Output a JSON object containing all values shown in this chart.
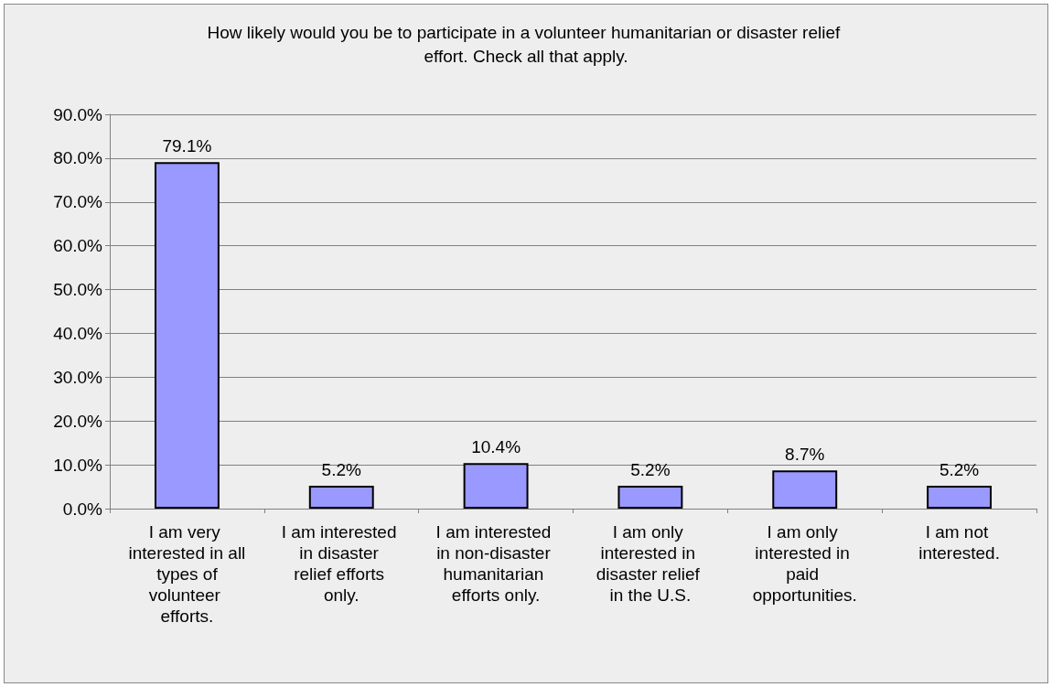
{
  "chart_data": {
    "type": "bar",
    "title": "How likely would you be to participate in a volunteer humanitarian or disaster relief effort. Check all that apply.",
    "categories": [
      "I am very interested in all types of volunteer efforts.",
      "I am interested in disaster relief efforts only.",
      "I am interested in non-disaster humanitarian efforts only.",
      "I am only interested in disaster relief in the U.S.",
      "I am only interested in paid opportunities.",
      "I am not interested."
    ],
    "values": [
      79.1,
      5.2,
      10.4,
      5.2,
      8.7,
      5.2
    ],
    "value_labels": [
      "79.1%",
      "5.2%",
      "10.4%",
      "5.2%",
      "8.7%",
      "5.2%"
    ],
    "color": "#9999ff",
    "ylim": [
      0,
      90
    ],
    "yticks": [
      {
        "value": 0,
        "label": "0.0%"
      },
      {
        "value": 10,
        "label": "10.0%"
      },
      {
        "value": 20,
        "label": "20.0%"
      },
      {
        "value": 30,
        "label": "30.0%"
      },
      {
        "value": 40,
        "label": "40.0%"
      },
      {
        "value": 50,
        "label": "50.0%"
      },
      {
        "value": 60,
        "label": "60.0%"
      },
      {
        "value": 70,
        "label": "70.0%"
      },
      {
        "value": 80,
        "label": "80.0%"
      },
      {
        "value": 90,
        "label": "90.0%"
      }
    ],
    "grid": "y"
  }
}
